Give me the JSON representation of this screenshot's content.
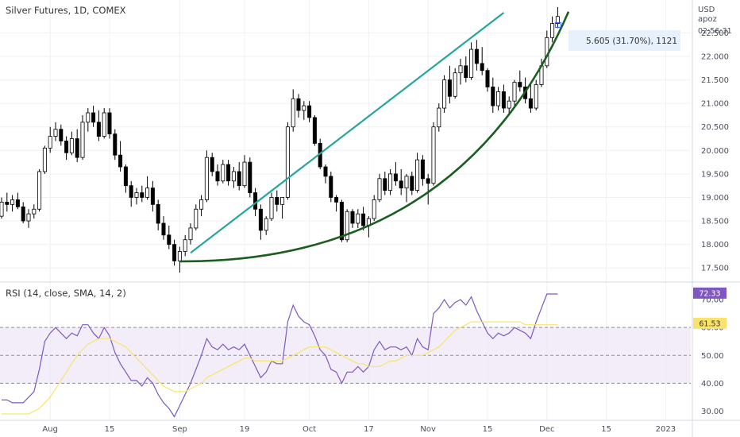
{
  "chart_data": [
    {
      "type": "candlestick",
      "title": "Silver Futures, 1D, COMEX",
      "currency": "USD",
      "exchange_tag": "apoz",
      "countdown": "02:56:31",
      "y_range": [
        17.25,
        23.2
      ],
      "y_ticks": [
        {
          "v": 17.5,
          "label": "17.500"
        },
        {
          "v": 18.0,
          "label": "18.000"
        },
        {
          "v": 18.5,
          "label": "18.500"
        },
        {
          "v": 19.0,
          "label": "19.000"
        },
        {
          "v": 19.5,
          "label": "19.500"
        },
        {
          "v": 20.0,
          "label": "20.000"
        },
        {
          "v": 20.5,
          "label": "20.500"
        },
        {
          "v": 21.0,
          "label": "21.000"
        },
        {
          "v": 21.5,
          "label": "21.500"
        },
        {
          "v": 22.0,
          "label": "22.000"
        },
        {
          "v": 22.5,
          "label": "22.500"
        }
      ],
      "x_labels": [
        "Aug",
        "15",
        "Sep",
        "19",
        "Oct",
        "17",
        "Nov",
        "15",
        "Dec",
        "15",
        "2023"
      ],
      "x_label_index": [
        9,
        20,
        33,
        45,
        57,
        68,
        79,
        90,
        101,
        112,
        123
      ],
      "candles": [
        [
          18.6,
          19.0,
          18.55,
          18.9
        ],
        [
          18.9,
          19.1,
          18.7,
          18.85
        ],
        [
          18.85,
          19.05,
          18.7,
          18.95
        ],
        [
          18.95,
          19.1,
          18.75,
          18.8
        ],
        [
          18.8,
          18.9,
          18.45,
          18.5
        ],
        [
          18.5,
          18.75,
          18.35,
          18.65
        ],
        [
          18.65,
          18.85,
          18.55,
          18.75
        ],
        [
          18.75,
          19.6,
          18.7,
          19.55
        ],
        [
          19.55,
          20.1,
          19.5,
          20.05
        ],
        [
          20.05,
          20.5,
          19.95,
          20.3
        ],
        [
          20.3,
          20.6,
          20.2,
          20.45
        ],
        [
          20.45,
          20.55,
          20.1,
          20.2
        ],
        [
          20.2,
          20.3,
          19.8,
          19.95
        ],
        [
          19.95,
          20.4,
          19.9,
          20.25
        ],
        [
          20.25,
          20.45,
          19.75,
          19.85
        ],
        [
          19.85,
          20.75,
          19.8,
          20.6
        ],
        [
          20.6,
          20.9,
          20.4,
          20.8
        ],
        [
          20.8,
          20.95,
          20.5,
          20.6
        ],
        [
          20.6,
          20.85,
          20.2,
          20.3
        ],
        [
          20.3,
          20.9,
          20.25,
          20.8
        ],
        [
          20.8,
          20.9,
          20.25,
          20.35
        ],
        [
          20.35,
          20.45,
          19.8,
          19.9
        ],
        [
          19.9,
          20.2,
          19.55,
          19.65
        ],
        [
          19.65,
          19.7,
          19.1,
          19.25
        ],
        [
          19.25,
          19.35,
          18.8,
          19.0
        ],
        [
          19.0,
          19.2,
          18.85,
          19.1
        ],
        [
          19.1,
          19.25,
          18.9,
          19.0
        ],
        [
          19.0,
          19.45,
          18.95,
          19.2
        ],
        [
          19.2,
          19.35,
          18.7,
          18.85
        ],
        [
          18.85,
          18.95,
          18.3,
          18.45
        ],
        [
          18.45,
          18.6,
          18.1,
          18.2
        ],
        [
          18.2,
          18.4,
          17.9,
          18.0
        ],
        [
          18.0,
          18.1,
          17.55,
          17.65
        ],
        [
          17.65,
          17.95,
          17.4,
          17.85
        ],
        [
          17.85,
          18.2,
          17.75,
          18.1
        ],
        [
          18.1,
          18.45,
          18.0,
          18.35
        ],
        [
          18.35,
          18.85,
          18.3,
          18.75
        ],
        [
          18.75,
          19.05,
          18.6,
          18.95
        ],
        [
          18.95,
          20.0,
          18.9,
          19.85
        ],
        [
          19.85,
          19.95,
          19.45,
          19.55
        ],
        [
          19.55,
          19.7,
          19.25,
          19.35
        ],
        [
          19.35,
          19.8,
          19.3,
          19.7
        ],
        [
          19.7,
          19.8,
          19.25,
          19.35
        ],
        [
          19.35,
          19.65,
          19.2,
          19.55
        ],
        [
          19.55,
          19.75,
          19.15,
          19.25
        ],
        [
          19.25,
          19.9,
          19.2,
          19.75
        ],
        [
          19.75,
          19.85,
          19.0,
          19.1
        ],
        [
          19.1,
          19.2,
          18.6,
          18.75
        ],
        [
          18.75,
          18.85,
          18.1,
          18.3
        ],
        [
          18.3,
          18.6,
          18.2,
          18.55
        ],
        [
          18.55,
          19.1,
          18.5,
          19.0
        ],
        [
          19.0,
          19.15,
          18.7,
          18.85
        ],
        [
          18.85,
          19.0,
          18.55,
          19.0
        ],
        [
          19.0,
          20.6,
          18.95,
          20.5
        ],
        [
          20.5,
          21.3,
          20.4,
          21.1
        ],
        [
          21.1,
          21.2,
          20.7,
          20.85
        ],
        [
          20.85,
          21.05,
          20.65,
          20.95
        ],
        [
          20.95,
          21.05,
          20.6,
          20.7
        ],
        [
          20.7,
          20.75,
          20.1,
          20.15
        ],
        [
          20.15,
          20.25,
          19.6,
          19.65
        ],
        [
          19.65,
          19.7,
          19.3,
          19.45
        ],
        [
          19.45,
          19.55,
          18.9,
          19.0
        ],
        [
          19.0,
          19.05,
          18.7,
          18.9
        ],
        [
          18.9,
          18.95,
          18.05,
          18.1
        ],
        [
          18.1,
          18.75,
          18.05,
          18.7
        ],
        [
          18.7,
          18.75,
          18.35,
          18.45
        ],
        [
          18.45,
          18.75,
          18.35,
          18.65
        ],
        [
          18.65,
          18.8,
          18.3,
          18.4
        ],
        [
          18.4,
          18.6,
          18.15,
          18.55
        ],
        [
          18.55,
          19.05,
          18.5,
          18.95
        ],
        [
          18.95,
          19.5,
          18.9,
          19.4
        ],
        [
          19.4,
          19.55,
          19.05,
          19.15
        ],
        [
          19.15,
          19.6,
          19.05,
          19.5
        ],
        [
          19.5,
          19.75,
          19.25,
          19.35
        ],
        [
          19.35,
          19.6,
          19.05,
          19.2
        ],
        [
          19.2,
          19.5,
          18.9,
          19.45
        ],
        [
          19.45,
          19.55,
          19.05,
          19.15
        ],
        [
          19.15,
          19.95,
          19.1,
          19.8
        ],
        [
          19.8,
          19.9,
          19.25,
          19.4
        ],
        [
          19.4,
          19.5,
          18.85,
          19.3
        ],
        [
          19.3,
          20.6,
          19.25,
          20.5
        ],
        [
          20.5,
          21.0,
          20.4,
          20.9
        ],
        [
          20.9,
          21.6,
          20.8,
          21.5
        ],
        [
          21.5,
          21.8,
          21.0,
          21.15
        ],
        [
          21.15,
          21.75,
          21.1,
          21.65
        ],
        [
          21.65,
          21.95,
          21.4,
          21.8
        ],
        [
          21.8,
          22.0,
          21.45,
          21.55
        ],
        [
          21.55,
          22.3,
          21.5,
          22.15
        ],
        [
          22.15,
          22.35,
          21.7,
          21.85
        ],
        [
          21.85,
          22.2,
          21.6,
          21.7
        ],
        [
          21.7,
          21.75,
          21.25,
          21.35
        ],
        [
          21.35,
          21.55,
          20.8,
          20.95
        ],
        [
          20.95,
          21.35,
          20.85,
          21.25
        ],
        [
          21.25,
          21.4,
          20.8,
          20.9
        ],
        [
          20.9,
          21.15,
          20.75,
          21.05
        ],
        [
          21.05,
          21.5,
          20.95,
          21.45
        ],
        [
          21.45,
          21.7,
          21.25,
          21.35
        ],
        [
          21.35,
          21.55,
          21.0,
          21.1
        ],
        [
          21.1,
          21.45,
          20.8,
          20.9
        ],
        [
          20.9,
          21.5,
          20.85,
          21.4
        ],
        [
          21.4,
          21.95,
          21.35,
          21.8
        ],
        [
          21.8,
          22.55,
          21.75,
          22.4
        ],
        [
          22.4,
          22.85,
          22.3,
          22.7
        ],
        [
          22.7,
          23.05,
          22.6,
          22.85
        ]
      ],
      "annotations": [
        {
          "type": "trend_line",
          "name": "upper-trend-line",
          "from": [
            35,
            17.82
          ],
          "to": [
            93,
            22.93
          ],
          "color": "#26a69a"
        },
        {
          "type": "parabolic_curve",
          "name": "parabolic-support-curve",
          "from": [
            33,
            17.64
          ],
          "to": [
            105,
            22.95
          ],
          "color": "#1b5e20"
        }
      ],
      "measure_label": "5.605 (31.70%), 1121",
      "ohlc_colors": {
        "up": "#ffffff",
        "down": "#000000",
        "wick": "#000000"
      }
    },
    {
      "type": "line",
      "title": "RSI (14, close, SMA, 14, 2)",
      "y_range": [
        27,
        76
      ],
      "y_ticks": [
        {
          "v": 30,
          "label": "30.00"
        },
        {
          "v": 40,
          "label": "40.00"
        },
        {
          "v": 50,
          "label": "50.00"
        },
        {
          "v": 60,
          "label": "60.00"
        },
        {
          "v": 70,
          "label": "70.00"
        }
      ],
      "band": [
        40,
        60
      ],
      "levels": [
        40,
        50,
        60
      ],
      "series": [
        {
          "name": "RSI",
          "color": "#7e57c2",
          "current": "72.33",
          "values": [
            34,
            34,
            33,
            33,
            33,
            35,
            37,
            45,
            55,
            58,
            60,
            58,
            56,
            58,
            57,
            61,
            61,
            58,
            56,
            60,
            57,
            51,
            47,
            44,
            41,
            41,
            39,
            42,
            40,
            36,
            33,
            31,
            28,
            32,
            36,
            40,
            45,
            50,
            56,
            53,
            52,
            54,
            52,
            53,
            52,
            54,
            50,
            46,
            42,
            44,
            48,
            47,
            47,
            62,
            68,
            64,
            62,
            61,
            57,
            52,
            50,
            45,
            44,
            40,
            44,
            44,
            46,
            44,
            46,
            52,
            55,
            52,
            53,
            53,
            52,
            53,
            50,
            56,
            53,
            52,
            65,
            67,
            70,
            67,
            69,
            70,
            68,
            71,
            66,
            62,
            58,
            56,
            58,
            57,
            58,
            60,
            59,
            58,
            56,
            62,
            67,
            72,
            72,
            72
          ]
        },
        {
          "name": "SMA",
          "color": "#fbe36b",
          "current": "61.53",
          "values": [
            29,
            29,
            29,
            29,
            29,
            29,
            30,
            31,
            33,
            35,
            38,
            41,
            44,
            47,
            50,
            52,
            54,
            55,
            56,
            56,
            56,
            55,
            54,
            53,
            51,
            49,
            47,
            45,
            43,
            41,
            39,
            38,
            37,
            37,
            37,
            38,
            39,
            40,
            42,
            43,
            44,
            45,
            46,
            47,
            48,
            49,
            49,
            48,
            48,
            48,
            48,
            48,
            48,
            49,
            50,
            51,
            52,
            53,
            53,
            53,
            53,
            52,
            51,
            50,
            49,
            48,
            47,
            47,
            46,
            46,
            46,
            47,
            48,
            48,
            49,
            50,
            50,
            50,
            50,
            51,
            52,
            53,
            55,
            57,
            59,
            60,
            61,
            62,
            62,
            62,
            62,
            62,
            62,
            62,
            62,
            62,
            62,
            61,
            61,
            61,
            61,
            61,
            61,
            61
          ]
        }
      ],
      "value_labels": [
        {
          "text": "72.33",
          "v": 72.33,
          "bg": "#7e57c2"
        },
        {
          "text": "61.53",
          "v": 61.53,
          "bg": "#fbe36b"
        }
      ]
    }
  ]
}
